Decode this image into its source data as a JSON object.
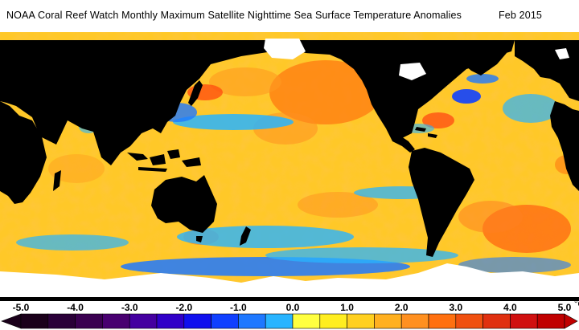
{
  "title": {
    "text": "NOAA Coral Reef Watch Monthly Maximum Satellite Nighttime Sea Surface Temperature Anomalies",
    "date": "Feb 2015"
  },
  "legend": {
    "unit": "°C",
    "ticks": [
      "-5.0",
      "-4.0",
      "-3.0",
      "-2.0",
      "-1.0",
      "0.0",
      "1.0",
      "2.0",
      "3.0",
      "4.0",
      "5.0"
    ],
    "min": -5.0,
    "max": 5.0,
    "bins": [
      {
        "from": -5.0,
        "to": -4.5,
        "color": "#1a001a"
      },
      {
        "from": -4.5,
        "to": -4.0,
        "color": "#2a0038"
      },
      {
        "from": -4.0,
        "to": -3.5,
        "color": "#3a0050"
      },
      {
        "from": -3.5,
        "to": -3.0,
        "color": "#480070"
      },
      {
        "from": -3.0,
        "to": -2.5,
        "color": "#4400a0"
      },
      {
        "from": -2.5,
        "to": -2.0,
        "color": "#3000c8"
      },
      {
        "from": -2.0,
        "to": -1.5,
        "color": "#1010ee"
      },
      {
        "from": -1.5,
        "to": -1.0,
        "color": "#1040ff"
      },
      {
        "from": -1.0,
        "to": -0.5,
        "color": "#1e78ff"
      },
      {
        "from": -0.5,
        "to": 0.0,
        "color": "#28b4ff"
      },
      {
        "from": 0.0,
        "to": 0.5,
        "color": "#ffff40"
      },
      {
        "from": 0.5,
        "to": 1.0,
        "color": "#ffee20"
      },
      {
        "from": 1.0,
        "to": 1.5,
        "color": "#ffd020"
      },
      {
        "from": 1.5,
        "to": 2.0,
        "color": "#ffb020"
      },
      {
        "from": 2.0,
        "to": 2.5,
        "color": "#ff9020"
      },
      {
        "from": 2.5,
        "to": 3.0,
        "color": "#ff7010"
      },
      {
        "from": 3.0,
        "to": 3.5,
        "color": "#f05010"
      },
      {
        "from": 3.5,
        "to": 4.0,
        "color": "#e03010"
      },
      {
        "from": 4.0,
        "to": 4.5,
        "color": "#d01010"
      },
      {
        "from": 4.5,
        "to": 5.0,
        "color": "#c00000"
      }
    ]
  },
  "colors": {
    "land": "#000000",
    "ice": "#ffffff",
    "ocean_base": "#ffc828"
  }
}
